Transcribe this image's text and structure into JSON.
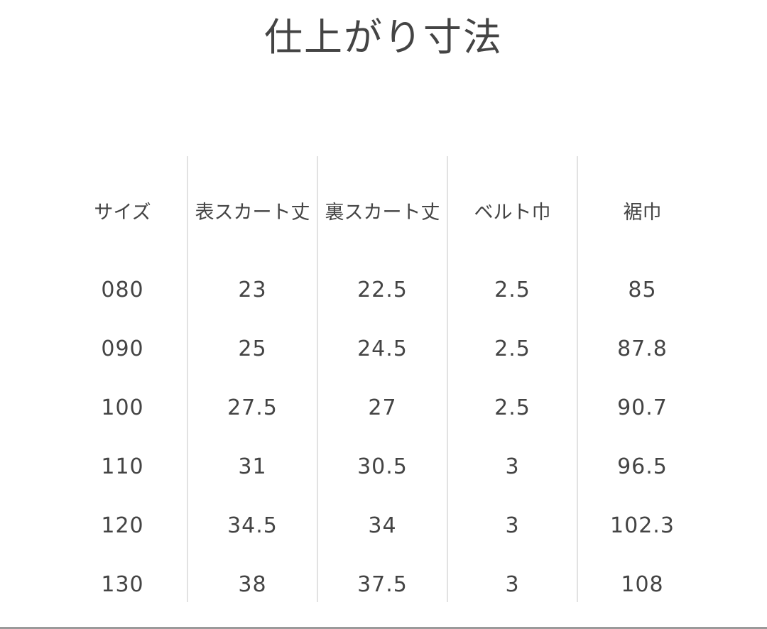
{
  "title": "仕上がり寸法",
  "table": {
    "headers": [
      "サイズ",
      "表スカート丈",
      "裏スカート丈",
      "ベルト巾",
      "裾巾"
    ],
    "rows": [
      [
        "080",
        "23",
        "22.5",
        "2.5",
        "85"
      ],
      [
        "090",
        "25",
        "24.5",
        "2.5",
        "87.8"
      ],
      [
        "100",
        "27.5",
        "27",
        "2.5",
        "90.7"
      ],
      [
        "110",
        "31",
        "30.5",
        "3",
        "96.5"
      ],
      [
        "120",
        "34.5",
        "34",
        "3",
        "102.3"
      ],
      [
        "130",
        "38",
        "37.5",
        "3",
        "108"
      ]
    ]
  }
}
